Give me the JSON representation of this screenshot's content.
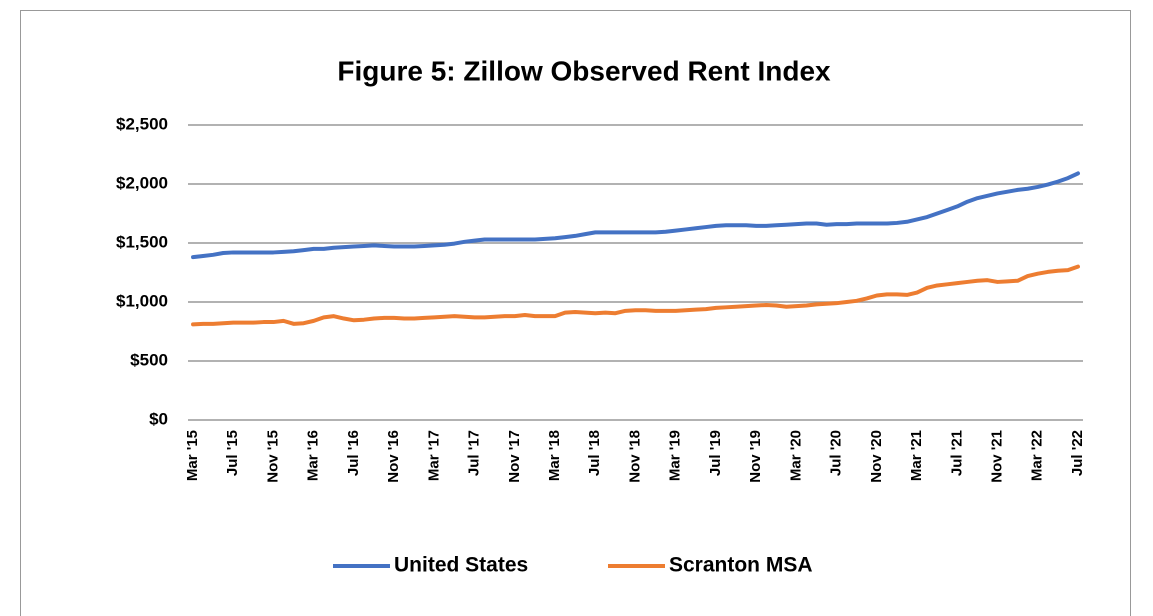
{
  "chart_data": {
    "type": "line",
    "title": "Figure 5: Zillow Observed Rent Index",
    "categories": [
      "Mar '15",
      null,
      null,
      null,
      "Jul '15",
      null,
      null,
      null,
      "Nov '15",
      null,
      null,
      null,
      "Mar '16",
      null,
      null,
      null,
      "Jul '16",
      null,
      null,
      null,
      "Nov '16",
      null,
      null,
      null,
      "Mar '17",
      null,
      null,
      null,
      "Jul '17",
      null,
      null,
      null,
      "Nov '17",
      null,
      null,
      null,
      "Mar '18",
      null,
      null,
      null,
      "Jul '18",
      null,
      null,
      null,
      "Nov '18",
      null,
      null,
      null,
      "Mar '19",
      null,
      null,
      null,
      "Jul '19",
      null,
      null,
      null,
      "Nov '19",
      null,
      null,
      null,
      "Mar '20",
      null,
      null,
      null,
      "Jul '20",
      null,
      null,
      null,
      "Nov '20",
      null,
      null,
      null,
      "Mar '21",
      null,
      null,
      null,
      "Jul '21",
      null,
      null,
      null,
      "Nov '21",
      null,
      null,
      null,
      "Mar '22",
      null,
      null,
      null,
      "Jul '22"
    ],
    "series": [
      {
        "name": "United States",
        "color": "#4472c4",
        "values": [
          1380,
          1390,
          1400,
          1415,
          1420,
          1420,
          1420,
          1420,
          1420,
          1425,
          1430,
          1440,
          1450,
          1450,
          1460,
          1465,
          1470,
          1475,
          1480,
          1475,
          1470,
          1470,
          1470,
          1475,
          1480,
          1485,
          1495,
          1510,
          1520,
          1530,
          1530,
          1530,
          1530,
          1530,
          1530,
          1535,
          1540,
          1550,
          1560,
          1575,
          1590,
          1590,
          1590,
          1590,
          1590,
          1590,
          1590,
          1595,
          1605,
          1615,
          1625,
          1635,
          1645,
          1650,
          1650,
          1650,
          1645,
          1645,
          1650,
          1655,
          1660,
          1665,
          1665,
          1655,
          1660,
          1660,
          1665,
          1665,
          1665,
          1665,
          1670,
          1680,
          1700,
          1720,
          1750,
          1780,
          1810,
          1850,
          1880,
          1900,
          1920,
          1935,
          1950,
          1960,
          1975,
          1995,
          2020,
          2050,
          2090
        ]
      },
      {
        "name": "Scranton MSA",
        "color": "#ed7d31",
        "values": [
          810,
          815,
          815,
          820,
          825,
          825,
          825,
          830,
          830,
          840,
          815,
          820,
          840,
          870,
          880,
          860,
          845,
          850,
          860,
          865,
          865,
          860,
          860,
          865,
          870,
          875,
          880,
          875,
          870,
          870,
          875,
          880,
          880,
          890,
          880,
          880,
          880,
          910,
          915,
          910,
          905,
          910,
          905,
          925,
          930,
          930,
          925,
          925,
          925,
          930,
          935,
          940,
          950,
          955,
          960,
          965,
          970,
          975,
          970,
          960,
          965,
          970,
          980,
          985,
          990,
          1000,
          1010,
          1030,
          1055,
          1065,
          1065,
          1060,
          1080,
          1120,
          1140,
          1150,
          1160,
          1170,
          1180,
          1185,
          1170,
          1175,
          1180,
          1220,
          1240,
          1255,
          1265,
          1270,
          1300
        ]
      }
    ],
    "ylim": [
      0,
      2500
    ],
    "yticks": [
      {
        "value": 0,
        "label": "$0"
      },
      {
        "value": 500,
        "label": "$500"
      },
      {
        "value": 1000,
        "label": "$1,000"
      },
      {
        "value": 1500,
        "label": "$1,500"
      },
      {
        "value": 2000,
        "label": "$2,000"
      },
      {
        "value": 2500,
        "label": "$2,500"
      }
    ],
    "grid": true,
    "legend": "bottom"
  }
}
